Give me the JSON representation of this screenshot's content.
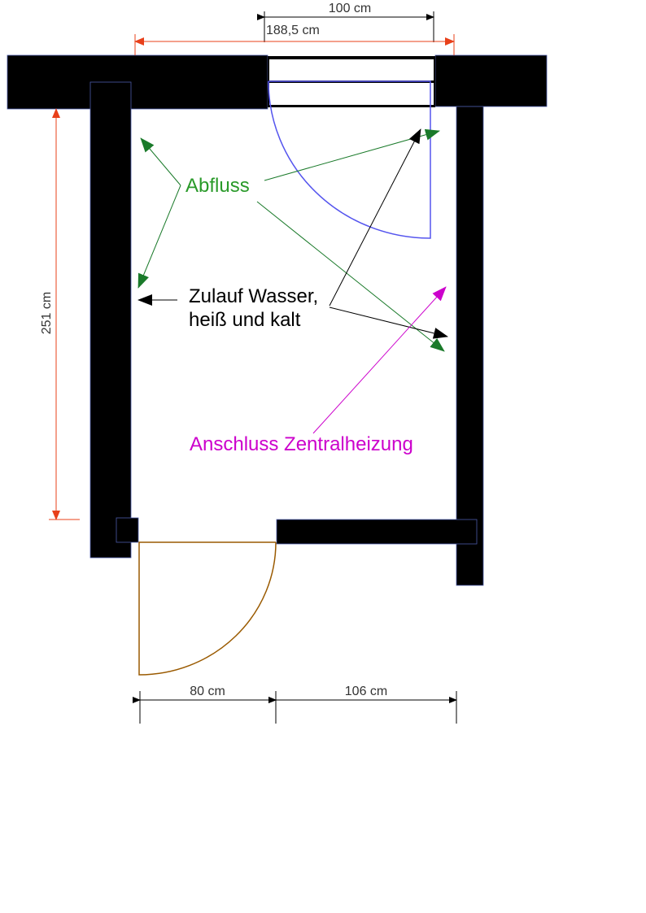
{
  "dimensions": {
    "window_width": "100 cm",
    "room_width": "188,5 cm",
    "room_length": "251 cm",
    "door_width": "80 cm",
    "wall_segment": "106 cm"
  },
  "labels": {
    "drain": "Abfluss",
    "water_supply": [
      "Zulauf Wasser,",
      "heiß und kalt"
    ],
    "heating": "Anschluss Zentralheizung"
  }
}
